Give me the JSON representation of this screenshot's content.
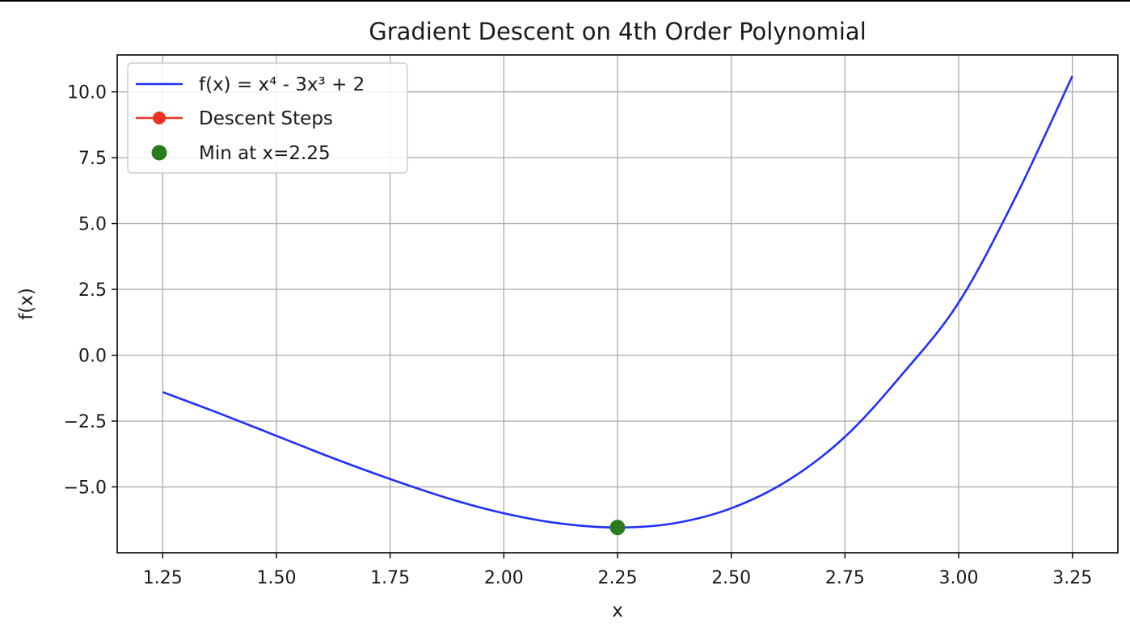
{
  "chart_data": {
    "type": "line",
    "title": "Gradient Descent on 4th Order Polynomial",
    "xlabel": "x",
    "ylabel": "f(x)",
    "xlim": [
      1.15,
      3.35
    ],
    "ylim": [
      -7.5,
      11.4
    ],
    "xticks": [
      1.25,
      1.5,
      1.75,
      2.0,
      2.25,
      2.5,
      2.75,
      3.0,
      3.25
    ],
    "xtick_labels": [
      "1.25",
      "1.50",
      "1.75",
      "2.00",
      "2.25",
      "2.50",
      "2.75",
      "3.00",
      "3.25"
    ],
    "yticks": [
      -5.0,
      -2.5,
      0.0,
      2.5,
      5.0,
      7.5,
      10.0
    ],
    "ytick_labels": [
      "−5.0",
      "−2.5",
      "0.0",
      "2.5",
      "5.0",
      "7.5",
      "10.0"
    ],
    "grid": true,
    "legend_position": "top-left",
    "series": [
      {
        "name": "f(x) = x⁴ - 3x³ + 2",
        "kind": "line",
        "color": "#1f30ff",
        "x": [
          1.25,
          1.375,
          1.5,
          1.625,
          1.75,
          1.875,
          2.0,
          2.125,
          2.25,
          2.375,
          2.5,
          2.625,
          2.75,
          2.875,
          3.0,
          3.125,
          3.25
        ],
        "y": [
          -1.4,
          -2.21,
          -3.06,
          -3.91,
          -4.7,
          -5.42,
          -6.0,
          -6.39,
          -6.54,
          -6.38,
          -5.81,
          -4.75,
          -3.1,
          -0.74,
          2.0,
          6.0,
          10.6
        ]
      },
      {
        "name": "Descent Steps",
        "kind": "line-marker",
        "color": "#ee3322",
        "x": [],
        "y": []
      },
      {
        "name": "Min at x=2.25",
        "kind": "marker",
        "color": "#2a7a1e",
        "x": [
          2.25
        ],
        "y": [
          -6.54
        ]
      }
    ]
  }
}
